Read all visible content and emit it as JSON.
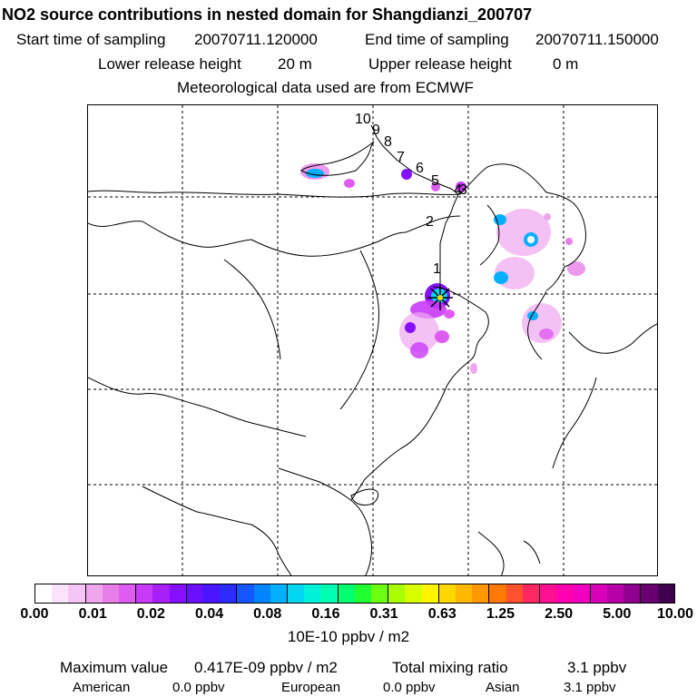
{
  "header": {
    "title": "NO2 source contributions in nested domain for Shangdianzi_200707",
    "start_label": "Start time of sampling",
    "start_value": "20070711.120000",
    "end_label": "End time of sampling",
    "end_value": "20070711.150000",
    "lower_label": "Lower release height",
    "lower_value": "20 m",
    "upper_label": "Upper release height",
    "upper_value": "0 m",
    "met_text": "Meteorological data used are from ECMWF"
  },
  "trajectory_labels": [
    "1",
    "2",
    "4",
    "5",
    "6",
    "7",
    "8",
    "9",
    "10",
    "3"
  ],
  "colorbar": {
    "tick_labels": [
      "0.00",
      "0.01",
      "0.02",
      "0.04",
      "0.08",
      "0.16",
      "0.31",
      "0.63",
      "1.25",
      "2.50",
      "5.00",
      "10.00"
    ],
    "colors": [
      "#ffffff",
      "#fbe3fb",
      "#f5c6f5",
      "#efa6ef",
      "#e87fe8",
      "#df5cf0",
      "#c83af7",
      "#a81ffa",
      "#8410ff",
      "#6a10ff",
      "#4a16ff",
      "#2c2cff",
      "#1456ff",
      "#0084ff",
      "#00b0ff",
      "#00d6f0",
      "#00f0d8",
      "#00ffb0",
      "#00ff70",
      "#20ff30",
      "#6cff10",
      "#a8ff00",
      "#d8ff00",
      "#fff500",
      "#ffd800",
      "#ffb800",
      "#ff9800",
      "#ff7800",
      "#ff5030",
      "#ff2860",
      "#ff1090",
      "#ff00b0",
      "#f000c0",
      "#d800b8",
      "#b800a8",
      "#900090",
      "#6a0070",
      "#400050"
    ],
    "unit": "10E-10 ppbv / m2"
  },
  "stats": {
    "max_label": "Maximum value",
    "max_value": "0.417E-09 ppbv / m2",
    "total_label": "Total mixing ratio",
    "total_value": "3.1 ppbv",
    "american_label": "American",
    "american_value": "0.0 ppbv",
    "european_label": "European",
    "european_value": "0.0 ppbv",
    "asian_label": "Asian",
    "asian_value": "3.1 ppbv"
  }
}
